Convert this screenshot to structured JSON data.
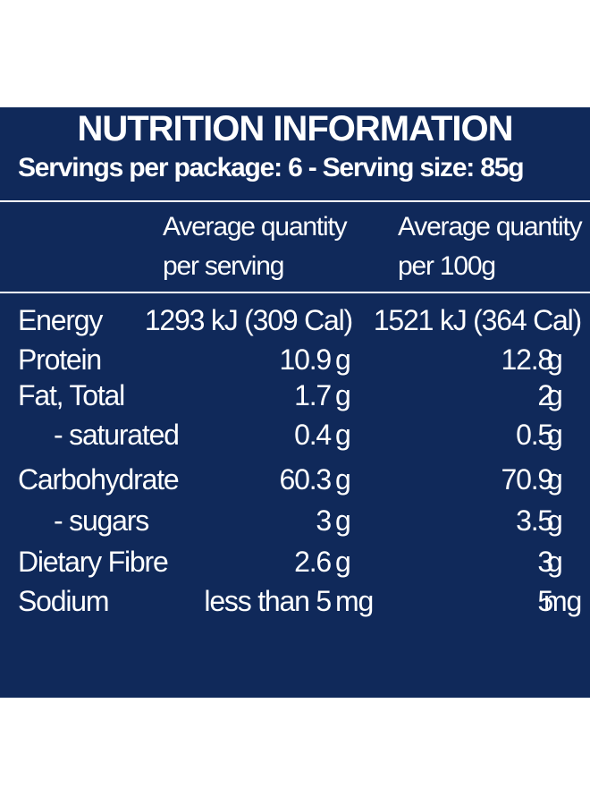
{
  "label": {
    "title": "NUTRITION INFORMATION",
    "servings_line": "Servings per package: 6 - Serving size: 85g",
    "columns": {
      "per_serving_line1": "Average quantity",
      "per_serving_line2": "per serving",
      "per_100g_line1": "Average quantity",
      "per_100g_line2": "per 100g"
    },
    "rows": [
      {
        "name": "Energy",
        "per_serving": "1293 kJ (309 Cal)",
        "per_100g": "1521 kJ (364 Cal)"
      },
      {
        "name": "Protein",
        "per_serving": "10.9",
        "unit1": "g",
        "per_100g": "12.8",
        "unit2": "g"
      },
      {
        "name": "Fat, Total",
        "per_serving": "1.7",
        "unit1": "g",
        "per_100g": "2",
        "unit2": "g"
      },
      {
        "name": "- saturated",
        "per_serving": "0.4",
        "unit1": "g",
        "per_100g": "0.5",
        "unit2": "g"
      },
      {
        "name": "Carbohydrate",
        "per_serving": "60.3",
        "unit1": "g",
        "per_100g": "70.9",
        "unit2": "g"
      },
      {
        "name": "- sugars",
        "per_serving": "3",
        "unit1": "g",
        "per_100g": "3.5",
        "unit2": "g"
      },
      {
        "name": "Dietary Fibre",
        "per_serving": "2.6",
        "unit1": "g",
        "per_100g": "3",
        "unit2": "g"
      },
      {
        "name": "Sodium",
        "per_serving": "less than 5",
        "unit1": "mg",
        "per_100g": "5",
        "unit2": "mg"
      }
    ]
  }
}
